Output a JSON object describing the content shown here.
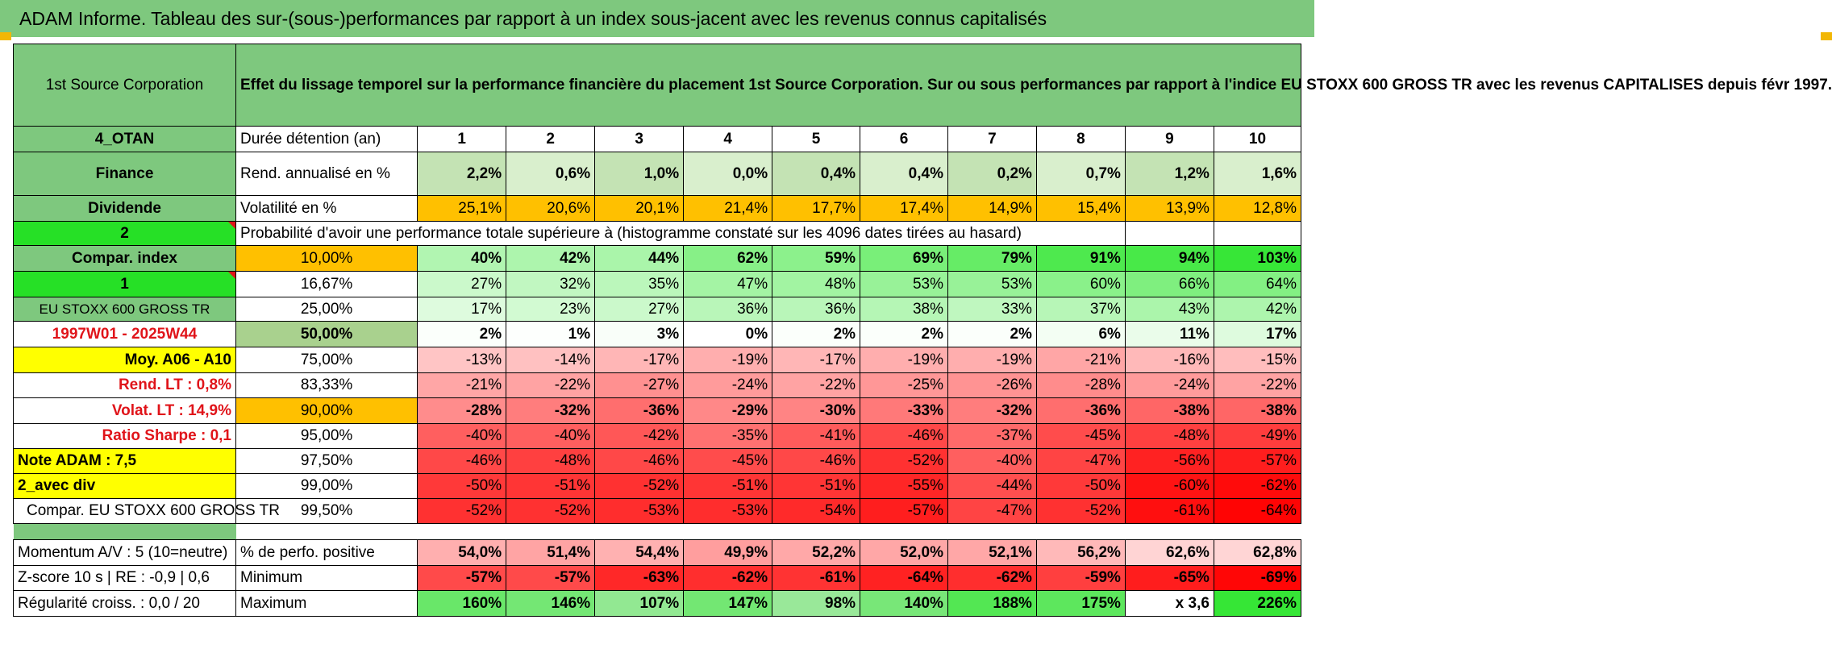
{
  "banner": "ADAM Informe. Tableau des sur-(sous-)performances par rapport à un index sous-jacent avec les revenus connus capitalisés",
  "company": "1st Source Corporation",
  "description": "Effet du lissage temporel sur la performance financière du placement 1st Source Corporation. Sur ou sous performances par rapport à l'indice EU STOXX 600 GROSS TR avec les revenus CAPITALISES depuis févr 1997.",
  "info": {
    "category": "4_OTAN",
    "sector": "Finance",
    "type": "Dividende",
    "code2": "2",
    "compar_label": "Compar. index",
    "code1": "1",
    "index_name": "EU STOXX 600 GROSS TR",
    "period": "1997W01 - 2025W44",
    "moy": "Moy. A06 - A10",
    "rend_lt": "Rend. LT :    0,8%",
    "volat_lt": "Volat. LT :    14,9%",
    "sharpe": "Ratio Sharpe :     0,1",
    "note": "Note ADAM : 7,5",
    "mode": "2_avec div",
    "compar_full": "Compar. EU STOXX 600 GROSS TR",
    "momentum": "Momentum A/V : 5 (10=neutre)",
    "zscore": "Z-score 10 s | RE : -0,9 | 0,6",
    "regularite": "Régularité croiss. : 0,0 / 20"
  },
  "years_label": "Durée détention (an)",
  "years": [
    "1",
    "2",
    "3",
    "4",
    "5",
    "6",
    "7",
    "8",
    "9",
    "10"
  ],
  "rend_label": "Rend. annualisé en %",
  "rend": [
    "2,2%",
    "0,6%",
    "1,0%",
    "0,0%",
    "0,4%",
    "0,4%",
    "0,2%",
    "0,7%",
    "1,2%",
    "1,6%"
  ],
  "vol_label": "Volatilité en %",
  "vol": [
    "25,1%",
    "20,6%",
    "20,1%",
    "21,4%",
    "17,7%",
    "17,4%",
    "14,9%",
    "15,4%",
    "13,9%",
    "12,8%"
  ],
  "prob_title": "Probabilité d'avoir une performance totale supérieure à (histogramme constaté sur les 4096 dates tirées au hasard)",
  "prob_rows": [
    {
      "threshold": "10,00%",
      "values": [
        "40%",
        "42%",
        "44%",
        "62%",
        "59%",
        "69%",
        "79%",
        "91%",
        "94%",
        "103%"
      ]
    },
    {
      "threshold": "16,67%",
      "values": [
        "27%",
        "32%",
        "35%",
        "47%",
        "48%",
        "53%",
        "53%",
        "60%",
        "66%",
        "64%"
      ]
    },
    {
      "threshold": "25,00%",
      "values": [
        "17%",
        "23%",
        "27%",
        "36%",
        "36%",
        "38%",
        "33%",
        "37%",
        "43%",
        "42%"
      ]
    },
    {
      "threshold": "50,00%",
      "values": [
        "2%",
        "1%",
        "3%",
        "0%",
        "2%",
        "2%",
        "2%",
        "6%",
        "11%",
        "17%"
      ]
    },
    {
      "threshold": "75,00%",
      "values": [
        "-13%",
        "-14%",
        "-17%",
        "-19%",
        "-17%",
        "-19%",
        "-19%",
        "-21%",
        "-16%",
        "-15%"
      ]
    },
    {
      "threshold": "83,33%",
      "values": [
        "-21%",
        "-22%",
        "-27%",
        "-24%",
        "-22%",
        "-25%",
        "-26%",
        "-28%",
        "-24%",
        "-22%"
      ]
    },
    {
      "threshold": "90,00%",
      "values": [
        "-28%",
        "-32%",
        "-36%",
        "-29%",
        "-30%",
        "-33%",
        "-32%",
        "-36%",
        "-38%",
        "-38%"
      ]
    },
    {
      "threshold": "95,00%",
      "values": [
        "-40%",
        "-40%",
        "-42%",
        "-35%",
        "-41%",
        "-46%",
        "-37%",
        "-45%",
        "-48%",
        "-49%"
      ]
    },
    {
      "threshold": "97,50%",
      "values": [
        "-46%",
        "-48%",
        "-46%",
        "-45%",
        "-46%",
        "-52%",
        "-40%",
        "-47%",
        "-56%",
        "-57%"
      ]
    },
    {
      "threshold": "99,00%",
      "values": [
        "-50%",
        "-51%",
        "-52%",
        "-51%",
        "-51%",
        "-55%",
        "-44%",
        "-50%",
        "-60%",
        "-62%"
      ]
    },
    {
      "threshold": "99,50%",
      "values": [
        "-52%",
        "-52%",
        "-53%",
        "-53%",
        "-54%",
        "-57%",
        "-47%",
        "-52%",
        "-61%",
        "-64%"
      ]
    }
  ],
  "pos_label": "% de perfo. positive",
  "pos": [
    "54,0%",
    "51,4%",
    "54,4%",
    "49,9%",
    "52,2%",
    "52,0%",
    "52,1%",
    "56,2%",
    "62,6%",
    "62,8%"
  ],
  "min_label": "Minimum",
  "min": [
    "-57%",
    "-57%",
    "-63%",
    "-62%",
    "-61%",
    "-64%",
    "-62%",
    "-59%",
    "-65%",
    "-69%"
  ],
  "max_label": "Maximum",
  "max": [
    "160%",
    "146%",
    "107%",
    "147%",
    "98%",
    "140%",
    "188%",
    "175%",
    "x 3,6",
    "226%"
  ],
  "colors": {
    "banner_green": "#7ec87e",
    "bright_green": "#26e026",
    "yellow": "#ffff00",
    "orange": "#ffc000",
    "red_text": "#e0141a"
  }
}
